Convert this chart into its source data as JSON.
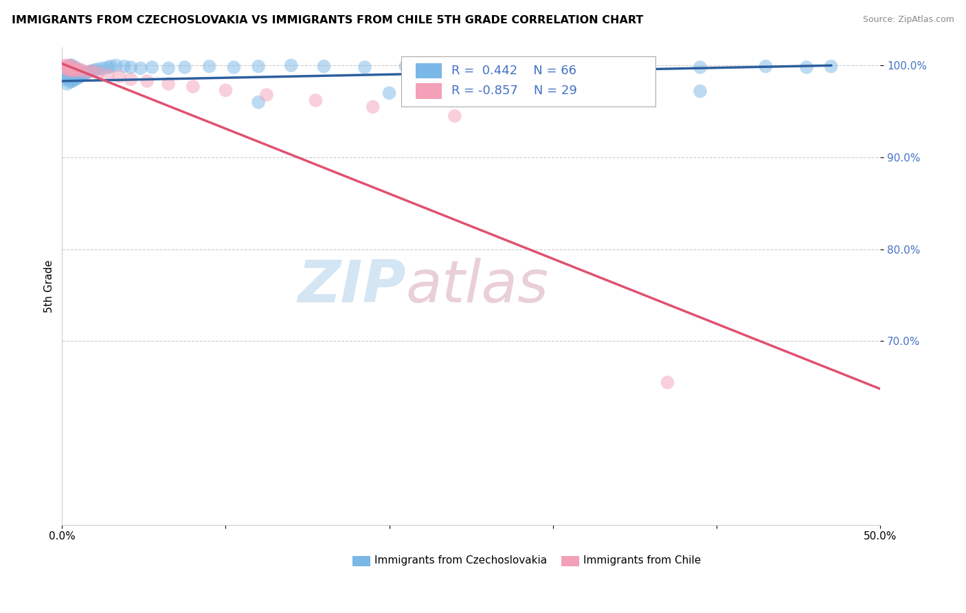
{
  "title": "IMMIGRANTS FROM CZECHOSLOVAKIA VS IMMIGRANTS FROM CHILE 5TH GRADE CORRELATION CHART",
  "source": "Source: ZipAtlas.com",
  "ylabel": "5th Grade",
  "xmin": 0.0,
  "xmax": 0.5,
  "ymin": 0.5,
  "ymax": 1.02,
  "yticks": [
    0.7,
    0.8,
    0.9,
    1.0
  ],
  "ytick_labels": [
    "70.0%",
    "80.0%",
    "90.0%",
    "100.0%"
  ],
  "xticks": [
    0.0,
    0.1,
    0.2,
    0.3,
    0.4,
    0.5
  ],
  "xtick_labels": [
    "0.0%",
    "",
    "",
    "",
    "",
    "50.0%"
  ],
  "legend_R1": " 0.442",
  "legend_N1": "66",
  "legend_R2": "-0.857",
  "legend_N2": "29",
  "blue_color": "#7ab8e8",
  "pink_color": "#f4a0b8",
  "blue_line_color": "#2c5f9e",
  "pink_line_color": "#e05070",
  "watermark_zip": "ZIP",
  "watermark_atlas": "atlas",
  "blue_scatter_x": [
    0.001,
    0.002,
    0.002,
    0.003,
    0.003,
    0.003,
    0.004,
    0.004,
    0.004,
    0.005,
    0.005,
    0.005,
    0.005,
    0.006,
    0.006,
    0.006,
    0.006,
    0.007,
    0.007,
    0.007,
    0.008,
    0.008,
    0.008,
    0.009,
    0.009,
    0.01,
    0.01,
    0.011,
    0.011,
    0.012,
    0.013,
    0.014,
    0.015,
    0.016,
    0.018,
    0.02,
    0.022,
    0.025,
    0.028,
    0.03,
    0.033,
    0.038,
    0.042,
    0.048,
    0.055,
    0.065,
    0.075,
    0.09,
    0.105,
    0.12,
    0.14,
    0.16,
    0.185,
    0.21,
    0.24,
    0.275,
    0.31,
    0.35,
    0.39,
    0.43,
    0.455,
    0.47,
    0.12,
    0.2,
    0.28,
    0.39
  ],
  "blue_scatter_y": [
    0.985,
    0.99,
    0.995,
    0.98,
    0.99,
    0.998,
    0.985,
    0.992,
    0.998,
    0.982,
    0.988,
    0.994,
    1.0,
    0.983,
    0.989,
    0.995,
    1.0,
    0.984,
    0.991,
    0.997,
    0.985,
    0.992,
    0.998,
    0.986,
    0.993,
    0.987,
    0.994,
    0.988,
    0.995,
    0.989,
    0.99,
    0.991,
    0.992,
    0.993,
    0.994,
    0.995,
    0.996,
    0.997,
    0.998,
    0.999,
    1.0,
    0.999,
    0.998,
    0.997,
    0.998,
    0.997,
    0.998,
    0.999,
    0.998,
    0.999,
    1.0,
    0.999,
    0.998,
    0.999,
    0.998,
    0.999,
    1.0,
    0.999,
    0.998,
    0.999,
    0.998,
    0.999,
    0.96,
    0.97,
    0.975,
    0.972
  ],
  "pink_scatter_x": [
    0.001,
    0.002,
    0.003,
    0.003,
    0.004,
    0.005,
    0.005,
    0.006,
    0.006,
    0.007,
    0.008,
    0.009,
    0.01,
    0.012,
    0.015,
    0.018,
    0.022,
    0.028,
    0.035,
    0.042,
    0.052,
    0.065,
    0.08,
    0.1,
    0.125,
    0.155,
    0.19,
    0.24,
    0.37
  ],
  "pink_scatter_y": [
    1.0,
    0.998,
    0.996,
    1.0,
    0.995,
    0.998,
    1.0,
    0.994,
    0.997,
    0.996,
    0.995,
    0.997,
    0.994,
    0.995,
    0.993,
    0.994,
    0.992,
    0.99,
    0.988,
    0.985,
    0.983,
    0.98,
    0.977,
    0.973,
    0.968,
    0.962,
    0.955,
    0.945,
    0.655
  ],
  "blue_trendline_x": [
    0.0,
    0.47
  ],
  "blue_trendline_y": [
    0.983,
    1.0
  ],
  "pink_trendline_x": [
    0.0,
    0.5
  ],
  "pink_trendline_y": [
    1.002,
    0.648
  ],
  "legend_x_label1": "Immigrants from Czechoslovakia",
  "legend_x_label2": "Immigrants from Chile",
  "grid_color": "#cccccc",
  "tick_color": "#4472c4"
}
